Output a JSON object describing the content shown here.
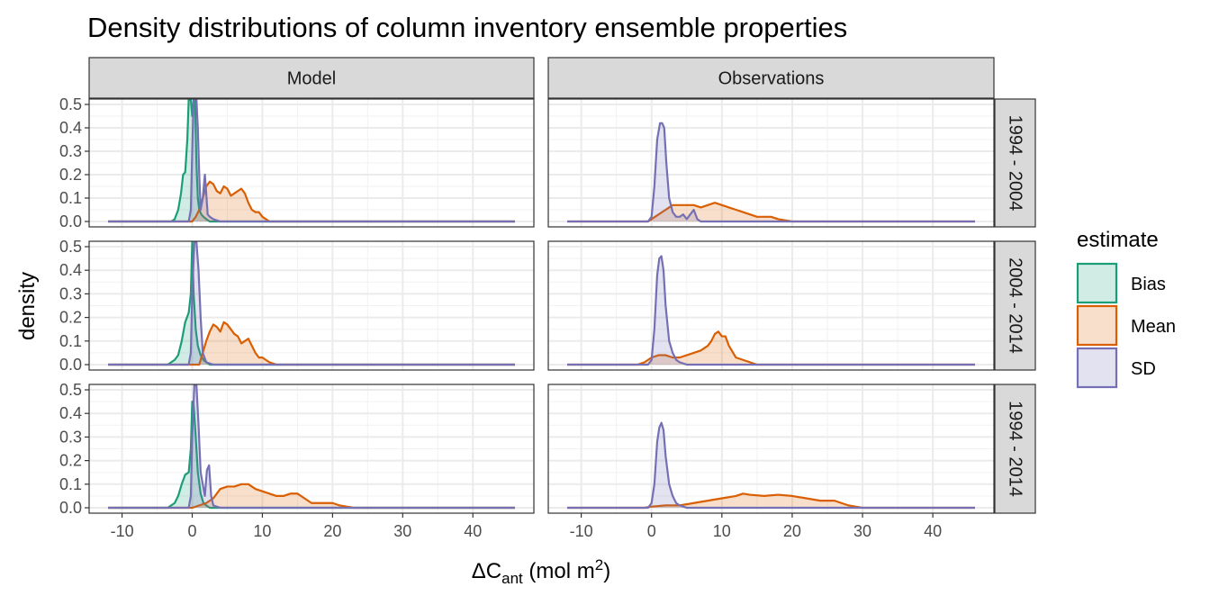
{
  "chart_data": {
    "type": "area",
    "title": "Density distributions of column inventory ensemble properties",
    "xlabel": "ΔC",
    "xlabel_subscript": "ant",
    "xlabel_unit_prefix": " (mol m",
    "xlabel_unit_superscript": "2",
    "xlabel_unit_suffix": ")",
    "ylabel": "density",
    "xlim": [
      -12,
      46
    ],
    "ylim": [
      0,
      0.5
    ],
    "x_ticks": [
      -10,
      0,
      10,
      20,
      30,
      40
    ],
    "y_ticks": [
      0.0,
      0.1,
      0.2,
      0.3,
      0.4,
      0.5
    ],
    "x_tick_labels": [
      "-10",
      "0",
      "10",
      "20",
      "30",
      "40"
    ],
    "y_tick_labels": [
      "0.0",
      "0.1",
      "0.2",
      "0.3",
      "0.4",
      "0.5"
    ],
    "grid": true,
    "columns": [
      "Model",
      "Observations"
    ],
    "rows": [
      "1994 - 2004",
      "2004 - 2014",
      "1994 - 2014"
    ],
    "legend": {
      "title": "estimate",
      "position": "right",
      "entries": [
        {
          "name": "Bias",
          "color": "#1b9e77"
        },
        {
          "name": "Mean",
          "color": "#d95f02"
        },
        {
          "name": "SD",
          "color": "#7570b3"
        }
      ]
    },
    "panels": [
      {
        "column": "Model",
        "row": "1994 - 2004",
        "series": [
          {
            "name": "Bias",
            "x": [
              -12,
              -3,
              -2.5,
              -2,
              -1.6,
              -1.3,
              -1,
              -0.7,
              -0.5,
              -0.2,
              0,
              0.2,
              0.4,
              0.6,
              0.8,
              1,
              1.3,
              1.6,
              2,
              2.5,
              3,
              46
            ],
            "y": [
              0,
              0,
              0.01,
              0.05,
              0.12,
              0.2,
              0.21,
              0.35,
              0.52,
              0.52,
              0.45,
              0.52,
              0.52,
              0.25,
              0.1,
              0.05,
              0.03,
              0.02,
              0.01,
              0,
              0,
              0
            ]
          },
          {
            "name": "Mean",
            "x": [
              -12,
              0,
              0.5,
              1,
              1.5,
              2,
              2.5,
              3,
              3.5,
              4,
              4.5,
              5,
              5.5,
              6,
              6.5,
              7,
              7.5,
              8,
              8.5,
              9,
              9.5,
              10,
              10.5,
              11,
              46
            ],
            "y": [
              0,
              0,
              0.02,
              0.05,
              0.1,
              0.15,
              0.17,
              0.16,
              0.13,
              0.12,
              0.15,
              0.14,
              0.11,
              0.12,
              0.13,
              0.14,
              0.12,
              0.08,
              0.05,
              0.04,
              0.04,
              0.02,
              0.01,
              0,
              0
            ]
          },
          {
            "name": "SD",
            "x": [
              -12,
              -0.5,
              -0.2,
              0,
              0.2,
              0.4,
              0.6,
              0.8,
              1,
              1.2,
              1.5,
              1.8,
              2,
              2.2,
              2.5,
              3,
              4,
              46
            ],
            "y": [
              0,
              0,
              0.05,
              0.3,
              0.52,
              0.52,
              0.52,
              0.4,
              0.2,
              0.05,
              0.1,
              0.2,
              0.12,
              0.03,
              0.02,
              0.01,
              0,
              0
            ]
          }
        ]
      },
      {
        "column": "Observations",
        "row": "1994 - 2004",
        "series": [
          {
            "name": "Mean",
            "x": [
              -12,
              -0.5,
              0,
              1,
              2,
              3,
              4,
              5,
              6,
              7,
              8,
              9,
              10,
              11,
              12,
              13,
              14,
              15,
              16,
              17,
              18,
              19,
              20,
              21,
              46
            ],
            "y": [
              0,
              0,
              0.01,
              0.03,
              0.05,
              0.07,
              0.07,
              0.07,
              0.07,
              0.06,
              0.07,
              0.08,
              0.07,
              0.06,
              0.05,
              0.04,
              0.03,
              0.02,
              0.02,
              0.02,
              0.01,
              0.005,
              0,
              0,
              0
            ]
          },
          {
            "name": "SD",
            "x": [
              -12,
              -0.5,
              0,
              0.4,
              0.8,
              1.2,
              1.5,
              1.8,
              2.1,
              2.5,
              3,
              3.5,
              4,
              4.5,
              5,
              5.5,
              6,
              6.5,
              7,
              46
            ],
            "y": [
              0,
              0,
              0.02,
              0.15,
              0.35,
              0.42,
              0.42,
              0.4,
              0.25,
              0.1,
              0.04,
              0.02,
              0.02,
              0.03,
              0.01,
              0.03,
              0.05,
              0.01,
              0,
              0
            ]
          }
        ]
      },
      {
        "column": "Model",
        "row": "2004 - 2014",
        "series": [
          {
            "name": "Bias",
            "x": [
              -12,
              -3.5,
              -3,
              -2.5,
              -2,
              -1.5,
              -1,
              -0.5,
              -0.2,
              0,
              0.2,
              0.5,
              0.8,
              1.2,
              1.6,
              2,
              2.5,
              46
            ],
            "y": [
              0,
              0,
              0.01,
              0.02,
              0.04,
              0.1,
              0.18,
              0.22,
              0.3,
              0.52,
              0.3,
              0.15,
              0.08,
              0.04,
              0.02,
              0.01,
              0,
              0
            ]
          },
          {
            "name": "Mean",
            "x": [
              -12,
              1,
              1.5,
              2,
              2.5,
              3,
              3.5,
              4,
              4.5,
              5,
              5.5,
              6,
              6.5,
              7,
              7.5,
              8,
              8.5,
              9,
              9.5,
              10,
              10.5,
              11,
              12,
              46
            ],
            "y": [
              0,
              0,
              0.05,
              0.1,
              0.14,
              0.17,
              0.16,
              0.14,
              0.18,
              0.17,
              0.15,
              0.13,
              0.12,
              0.09,
              0.1,
              0.11,
              0.08,
              0.05,
              0.03,
              0.03,
              0.02,
              0.01,
              0,
              0
            ]
          },
          {
            "name": "SD",
            "x": [
              -12,
              -0.5,
              -0.2,
              0,
              0.3,
              0.6,
              0.9,
              1.2,
              1.5,
              2,
              3,
              46
            ],
            "y": [
              0,
              0,
              0.05,
              0.3,
              0.52,
              0.52,
              0.4,
              0.2,
              0.05,
              0.01,
              0,
              0
            ]
          }
        ]
      },
      {
        "column": "Observations",
        "row": "2004 - 2014",
        "series": [
          {
            "name": "Mean",
            "x": [
              -12,
              -2,
              -1,
              0,
              1,
              2,
              3,
              4,
              5,
              6,
              7,
              8,
              8.5,
              9,
              9.5,
              10,
              10.5,
              11,
              12,
              13,
              14,
              15,
              46
            ],
            "y": [
              0,
              0,
              0.01,
              0.03,
              0.04,
              0.04,
              0.03,
              0.03,
              0.04,
              0.05,
              0.06,
              0.08,
              0.1,
              0.13,
              0.14,
              0.12,
              0.12,
              0.08,
              0.03,
              0.02,
              0.01,
              0,
              0
            ]
          },
          {
            "name": "SD",
            "x": [
              -12,
              -0.5,
              0,
              0.4,
              0.8,
              1.1,
              1.4,
              1.7,
              2,
              2.5,
              3,
              3.5,
              4,
              5,
              46
            ],
            "y": [
              0,
              0,
              0.02,
              0.15,
              0.38,
              0.45,
              0.46,
              0.4,
              0.25,
              0.1,
              0.05,
              0.02,
              0.01,
              0,
              0
            ]
          }
        ]
      },
      {
        "column": "Model",
        "row": "1994 - 2014",
        "series": [
          {
            "name": "Bias",
            "x": [
              -12,
              -3.5,
              -3,
              -2.5,
              -2,
              -1.5,
              -1,
              -0.5,
              -0.2,
              0,
              0.2,
              0.5,
              0.8,
              1.2,
              1.6,
              2,
              2.5,
              46
            ],
            "y": [
              0,
              0,
              0.01,
              0.02,
              0.05,
              0.1,
              0.14,
              0.15,
              0.25,
              0.45,
              0.44,
              0.3,
              0.15,
              0.06,
              0.02,
              0.01,
              0,
              0
            ]
          },
          {
            "name": "Mean",
            "x": [
              -12,
              0,
              1,
              2,
              3,
              4,
              5,
              6,
              7,
              8,
              9,
              10,
              11,
              12,
              13,
              14,
              15,
              16,
              17,
              18,
              19,
              20,
              21,
              22,
              23,
              46
            ],
            "y": [
              0,
              0,
              0.01,
              0.02,
              0.04,
              0.08,
              0.09,
              0.09,
              0.1,
              0.1,
              0.08,
              0.07,
              0.06,
              0.05,
              0.05,
              0.06,
              0.06,
              0.04,
              0.02,
              0.02,
              0.02,
              0.02,
              0.01,
              0.005,
              0,
              0
            ]
          },
          {
            "name": "SD",
            "x": [
              -12,
              -0.5,
              -0.2,
              0,
              0.3,
              0.6,
              0.9,
              1.2,
              1.5,
              1.8,
              2.1,
              2.4,
              2.7,
              3,
              4,
              46
            ],
            "y": [
              0,
              0,
              0.05,
              0.3,
              0.52,
              0.52,
              0.35,
              0.15,
              0.1,
              0.05,
              0.16,
              0.18,
              0.05,
              0.01,
              0,
              0
            ]
          }
        ]
      },
      {
        "column": "Observations",
        "row": "1994 - 2014",
        "series": [
          {
            "name": "Mean",
            "x": [
              -12,
              -1,
              0,
              2,
              4,
              6,
              8,
              10,
              12,
              13,
              14,
              16,
              18,
              20,
              22,
              24,
              25,
              26,
              27,
              28,
              29,
              30,
              46
            ],
            "y": [
              0,
              0,
              0.005,
              0.01,
              0.01,
              0.02,
              0.03,
              0.04,
              0.05,
              0.06,
              0.055,
              0.05,
              0.055,
              0.05,
              0.04,
              0.03,
              0.03,
              0.03,
              0.02,
              0.01,
              0.005,
              0,
              0
            ]
          },
          {
            "name": "SD",
            "x": [
              -12,
              -0.5,
              0,
              0.4,
              0.8,
              1.1,
              1.4,
              1.7,
              2,
              2.5,
              3,
              3.5,
              4,
              5,
              46
            ],
            "y": [
              0,
              0,
              0.02,
              0.1,
              0.28,
              0.34,
              0.36,
              0.33,
              0.22,
              0.1,
              0.05,
              0.02,
              0.01,
              0,
              0
            ]
          }
        ]
      }
    ]
  }
}
